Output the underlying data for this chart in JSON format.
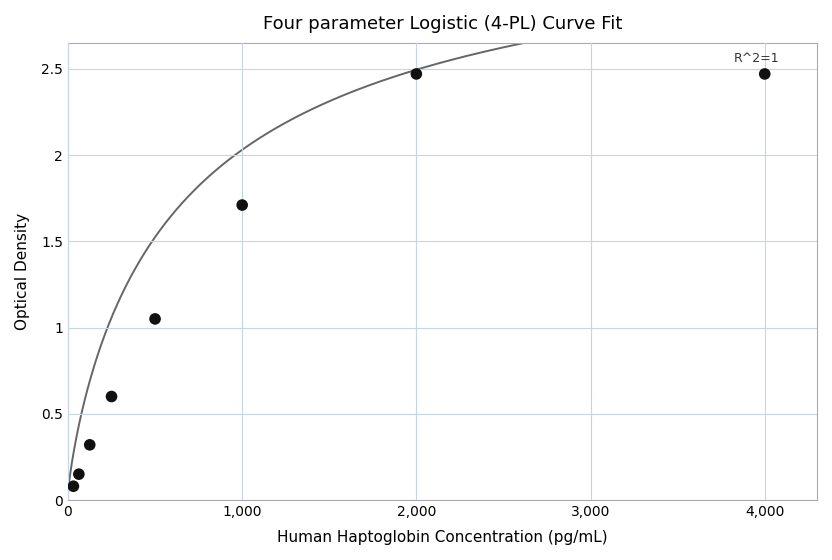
{
  "title": "Four parameter Logistic (4-PL) Curve Fit",
  "xlabel": "Human Haptoglobin Concentration (pg/mL)",
  "ylabel": "Optical Density",
  "annotation": "R^2=1",
  "scatter_x": [
    31.25,
    62.5,
    125,
    250,
    500,
    1000,
    2000,
    4000
  ],
  "scatter_y": [
    0.08,
    0.15,
    0.32,
    0.6,
    1.05,
    1.71,
    2.47,
    2.47
  ],
  "pl4_A": 0.04,
  "pl4_B": 0.85,
  "pl4_C": 700,
  "pl4_D": 3.5,
  "xlim": [
    0,
    4300
  ],
  "ylim": [
    0,
    2.65
  ],
  "xticks": [
    0,
    1000,
    2000,
    3000,
    4000
  ],
  "yticks": [
    0,
    0.5,
    1.0,
    1.5,
    2.0,
    2.5
  ],
  "dot_color": "#111111",
  "dot_size": 70,
  "line_color": "#666666",
  "line_width": 1.4,
  "grid_color": "#c5d5e5",
  "background_color": "#ffffff",
  "title_fontsize": 13,
  "label_fontsize": 11,
  "tick_fontsize": 10,
  "annot_fontsize": 9
}
